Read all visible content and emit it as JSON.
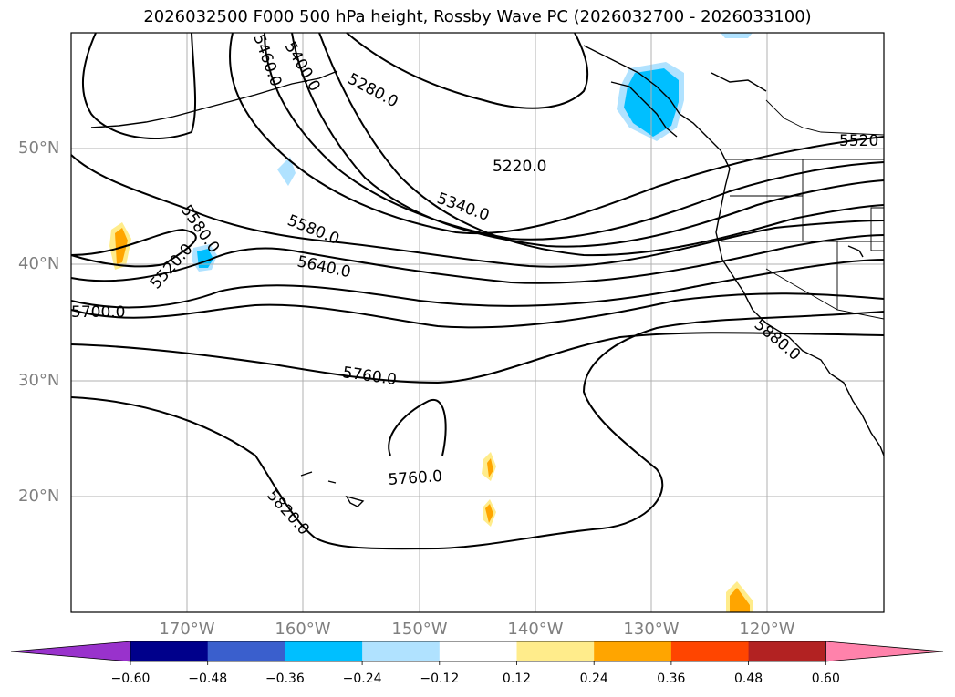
{
  "title": "2026032500 F000 500 hPa height, Rossby Wave PC (2026032700 - 2026033100)",
  "lat_labels": [
    "50°N",
    "40°N",
    "30°N",
    "20°N"
  ],
  "lon_labels": [
    "170°W",
    "160°W",
    "150°W",
    "140°W",
    "130°W",
    "120°W"
  ],
  "contour_labels": [
    "5220.0",
    "5340.0",
    "5580.0",
    "5640.0",
    "5760.0",
    "5760.0",
    "5820.0",
    "5880.0",
    "5520",
    "5580.0",
    "5520.0",
    "5280.0",
    "5400.0",
    "5460.0",
    "5700.0"
  ],
  "colorbar": {
    "ticks": [
      "−0.60",
      "−0.48",
      "−0.36",
      "−0.24",
      "−0.12",
      "0.12",
      "0.24",
      "0.36",
      "0.48",
      "0.60"
    ],
    "colors": [
      "#9932cc",
      "#00008b",
      "#3a5fcd",
      "#00bfff",
      "#b0e2ff",
      "#ffffff",
      "#ffec8b",
      "#ffa500",
      "#ff4500",
      "#b22222",
      "#ff82ab"
    ]
  }
}
